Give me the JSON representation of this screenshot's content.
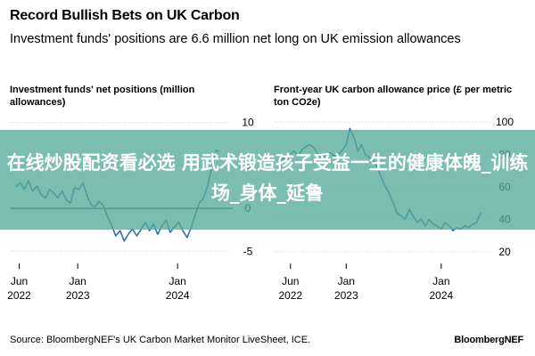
{
  "header": {
    "title": "Record Bullish Bets on UK Carbon",
    "subtitle": "Investment funds' positions are 6.6 million net long on UK emission allowances"
  },
  "footer": {
    "source": "Source: BloombergNEF's UK Carbon Market Monitor LiveSheet, ICE.",
    "brand": "BloombergNEF"
  },
  "banner": {
    "text": "在线炒股配资看必选 用武术锻造孩子受益一生的健康体魄_训练场_身体_延鲁"
  },
  "colors": {
    "line": "#2f6fae",
    "banner": "#56aa9b",
    "zero_line": "#000000",
    "grid": "#d9d9d9"
  },
  "chart_data": [
    {
      "type": "line",
      "title": "Investment funds' net positions (million allowances)",
      "x_ticks": [
        {
          "date": "2022-06",
          "label_line1": "Jun",
          "label_line2": "2022"
        },
        {
          "date": "2023-01",
          "label_line1": "Jan",
          "label_line2": "2023"
        },
        {
          "date": "2024-01",
          "label_line1": "Jan",
          "label_line2": "2024"
        }
      ],
      "xlim": [
        "2022-05",
        "2024-07"
      ],
      "y_ticks": [
        10,
        5,
        0,
        -5
      ],
      "ylim": [
        -6,
        11
      ],
      "y_axis_side": "right",
      "zero_line": true,
      "series": [
        {
          "x": [
            "2022-05-20",
            "2022-06-05",
            "2022-06-20",
            "2022-07-05",
            "2022-07-20",
            "2022-08-05",
            "2022-08-20",
            "2022-09-05",
            "2022-09-20",
            "2022-10-05",
            "2022-10-20",
            "2022-11-05",
            "2022-11-20",
            "2022-12-05",
            "2022-12-20",
            "2023-01-05",
            "2023-01-20",
            "2023-02-05",
            "2023-02-20",
            "2023-03-05",
            "2023-03-20",
            "2023-04-05",
            "2023-04-20",
            "2023-05-05",
            "2023-05-20",
            "2023-06-05",
            "2023-06-20",
            "2023-07-05",
            "2023-07-20",
            "2023-08-05",
            "2023-08-20",
            "2023-09-05",
            "2023-09-20",
            "2023-10-05",
            "2023-10-20",
            "2023-11-05",
            "2023-11-20",
            "2023-12-05",
            "2023-12-20",
            "2024-01-05",
            "2024-01-20",
            "2024-02-05",
            "2024-02-20",
            "2024-03-05",
            "2024-03-20",
            "2024-04-05",
            "2024-04-20",
            "2024-05-05",
            "2024-05-20",
            "2024-06-01"
          ],
          "values": [
            2.5,
            3.0,
            2.2,
            3.2,
            2.0,
            2.6,
            1.6,
            1.2,
            2.2,
            1.8,
            1.2,
            2.0,
            1.0,
            0.6,
            2.4,
            2.2,
            3.0,
            1.4,
            0.4,
            0.2,
            0.8,
            0.3,
            -1.0,
            -2.0,
            -3.2,
            -2.6,
            -3.8,
            -3.0,
            -2.4,
            -3.2,
            -2.5,
            -1.6,
            -2.6,
            -1.8,
            -3.0,
            -2.0,
            -1.4,
            -2.8,
            -2.2,
            -1.6,
            -2.6,
            -3.4,
            -2.2,
            -0.8,
            0.6,
            1.2,
            2.6,
            4.8,
            6.8,
            6.6
          ]
        }
      ]
    },
    {
      "type": "line",
      "title": "Front-year UK carbon allowance price (£ per metric ton CO2e)",
      "x_ticks": [
        {
          "date": "2022-06",
          "label_line1": "Jun",
          "label_line2": "2022"
        },
        {
          "date": "2023-01",
          "label_line1": "Jan",
          "label_line2": "2023"
        },
        {
          "date": "2024-01",
          "label_line1": "Jan",
          "label_line2": "2024"
        }
      ],
      "xlim": [
        "2022-04",
        "2024-07"
      ],
      "y_ticks": [
        100,
        80,
        60,
        40,
        20
      ],
      "ylim": [
        15,
        105
      ],
      "y_axis_side": "right",
      "zero_line": false,
      "series": [
        {
          "x": [
            "2022-04-15",
            "2022-05-01",
            "2022-05-15",
            "2022-06-01",
            "2022-06-15",
            "2022-07-01",
            "2022-07-15",
            "2022-08-01",
            "2022-08-15",
            "2022-09-01",
            "2022-09-15",
            "2022-10-01",
            "2022-10-15",
            "2022-11-01",
            "2022-11-15",
            "2022-12-01",
            "2022-12-15",
            "2023-01-01",
            "2023-01-15",
            "2023-02-01",
            "2023-02-15",
            "2023-03-01",
            "2023-03-15",
            "2023-04-01",
            "2023-04-15",
            "2023-05-01",
            "2023-05-15",
            "2023-06-01",
            "2023-06-15",
            "2023-07-01",
            "2023-07-15",
            "2023-08-01",
            "2023-08-15",
            "2023-09-01",
            "2023-09-15",
            "2023-10-01",
            "2023-10-15",
            "2023-11-01",
            "2023-11-15",
            "2023-12-01",
            "2023-12-15",
            "2024-01-01",
            "2024-01-15",
            "2024-02-01",
            "2024-02-15",
            "2024-03-01",
            "2024-03-15",
            "2024-04-01",
            "2024-04-15",
            "2024-05-01",
            "2024-05-15",
            "2024-06-01"
          ],
          "values": [
            74,
            78,
            76,
            80,
            82,
            79,
            83,
            85,
            86,
            84,
            80,
            78,
            80,
            81,
            79,
            80,
            82,
            86,
            96,
            90,
            82,
            86,
            80,
            78,
            76,
            72,
            66,
            60,
            56,
            50,
            44,
            42,
            40,
            46,
            42,
            38,
            40,
            36,
            40,
            37,
            36,
            34,
            38,
            36,
            33,
            35,
            34,
            36,
            35,
            37,
            38,
            44
          ]
        }
      ]
    }
  ]
}
